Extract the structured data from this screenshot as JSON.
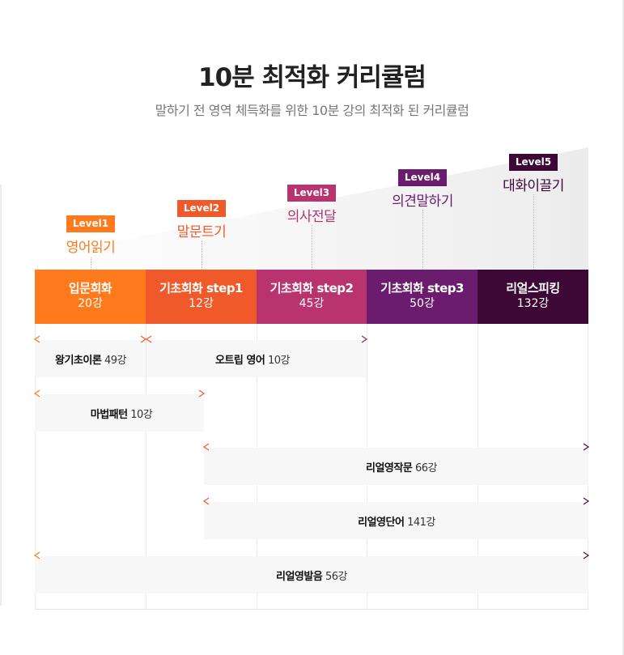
{
  "header": {
    "title": "10분 최적화 커리큘럼",
    "subtitle": "말하기 전 영역 체득화를 위한 10분 강의 최적화 된 커리큘럼"
  },
  "colors": {
    "level1": "#ff7a1c",
    "level2": "#f05a2a",
    "level3": "#b9336f",
    "level4": "#6c1c6e",
    "level5": "#3d0736"
  },
  "levels": [
    {
      "badge": "Level1",
      "name": "영어읽기"
    },
    {
      "badge": "Level2",
      "name": "말문트기"
    },
    {
      "badge": "Level3",
      "name": "의사전달"
    },
    {
      "badge": "Level4",
      "name": "의견말하기"
    },
    {
      "badge": "Level5",
      "name": "대화이끌기"
    }
  ],
  "stages": [
    {
      "name": "입문회화",
      "count": "20강"
    },
    {
      "name": "기초회화 step1",
      "count": "12강"
    },
    {
      "name": "기초회화 step2",
      "count": "45강"
    },
    {
      "name": "기초회화 step3",
      "count": "50강"
    },
    {
      "name": "리얼스피킹",
      "count": "132강"
    }
  ],
  "courses": [
    {
      "name": "왕기초이론",
      "count": "49강"
    },
    {
      "name": "오트립 영어",
      "count": "10강"
    },
    {
      "name": "마법패턴",
      "count": "10강"
    },
    {
      "name": "리얼영작문",
      "count": "66강"
    },
    {
      "name": "리얼영단어",
      "count": "141강"
    },
    {
      "name": "리얼영발음",
      "count": "56강"
    }
  ]
}
